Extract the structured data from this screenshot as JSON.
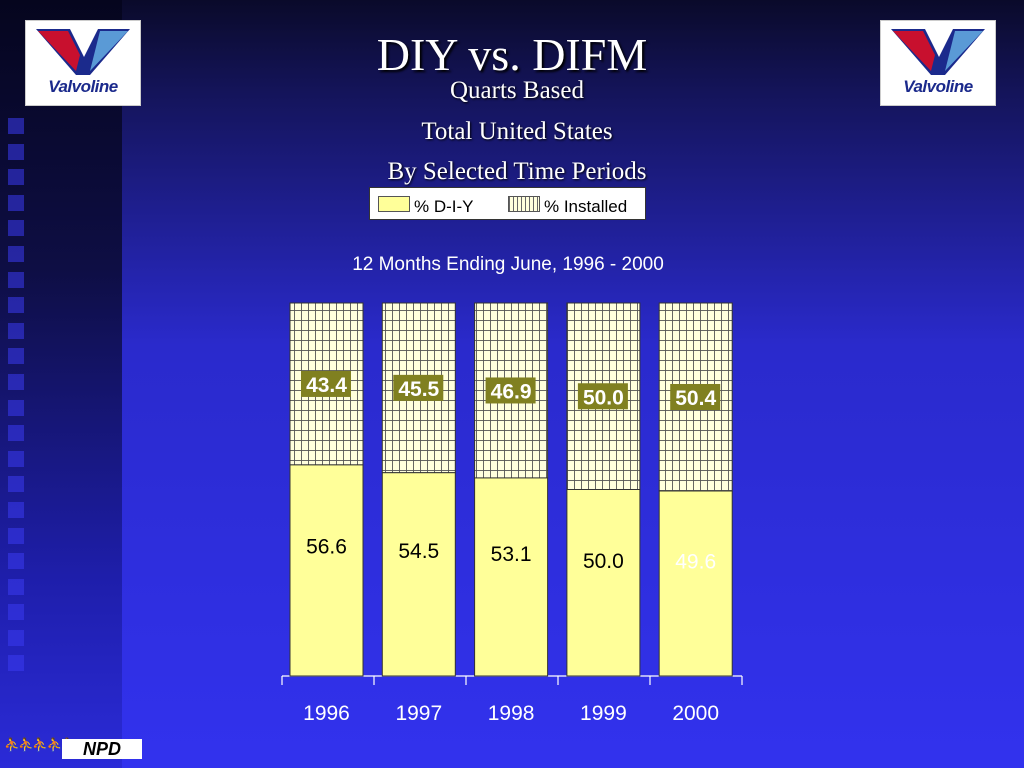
{
  "header": {
    "title": "DIY vs. DIFM",
    "subtitles": [
      "Quarts Based",
      "Total United States",
      "By Selected Time Periods"
    ],
    "logo_text": "Valvoline"
  },
  "footer": {
    "logo_text": "NPD"
  },
  "colors": {
    "diy": "#ffff99",
    "installed": "#ffffdd",
    "installed_label_bg": "#808020",
    "text_white": "#ffffff"
  },
  "chart_data": {
    "type": "bar",
    "stacked": true,
    "title": "12 Months Ending June, 1996 - 2000",
    "categories": [
      "1996",
      "1997",
      "1998",
      "1999",
      "2000"
    ],
    "series": [
      {
        "name": "% D-I-Y",
        "values": [
          56.6,
          54.5,
          53.1,
          50.0,
          49.6
        ]
      },
      {
        "name": "% Installed",
        "values": [
          43.4,
          45.5,
          46.9,
          50.0,
          50.4
        ]
      }
    ],
    "data_labels": {
      "diy": [
        "56.6",
        "54.5",
        "53.1",
        "50.0",
        "49.6"
      ],
      "installed": [
        "43.4",
        "45.5",
        "46.9",
        "50.0",
        "50.4"
      ]
    },
    "ylim": [
      0,
      100
    ],
    "legend_position": "top-center",
    "grid": false
  }
}
